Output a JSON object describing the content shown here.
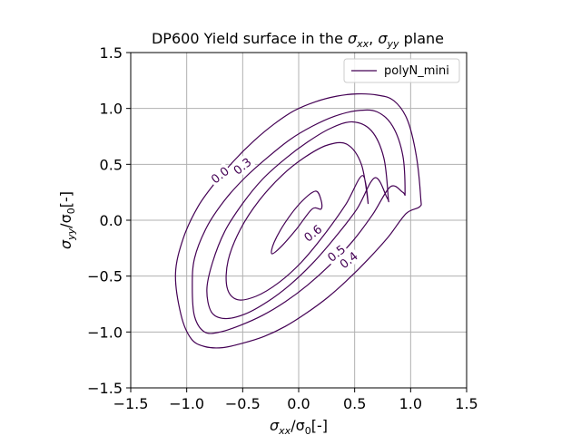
{
  "chart_data": {
    "type": "contour",
    "title": "DP600 Yield surface in the σxx, σyy plane",
    "title_parts": {
      "prefix": "DP600 Yield surface in the ",
      "var1_base": "σ",
      "var1_sub": "xx",
      "sep": ", ",
      "var2_base": "σ",
      "var2_sub": "yy",
      "suffix": " plane"
    },
    "xlabel": "σxx/σ0[-]",
    "xlabel_parts": {
      "base": "σ",
      "sub": "xx",
      "mid": "/σ",
      "sub2": "0",
      "tail": "[-]"
    },
    "ylabel": "σyy/σ0[-]",
    "ylabel_parts": {
      "base": "σ",
      "sub": "yy",
      "mid": "/σ",
      "sub2": "0",
      "tail": "[-]"
    },
    "xlim": [
      -1.5,
      1.5
    ],
    "ylim": [
      -1.5,
      1.5
    ],
    "xticks": [
      -1.5,
      -1.0,
      -0.5,
      0.0,
      0.5,
      1.0,
      1.5
    ],
    "yticks": [
      -1.5,
      -1.0,
      -0.5,
      0.0,
      0.5,
      1.0,
      1.5
    ],
    "xtick_labels": [
      "−1.5",
      "−1.0",
      "−0.5",
      "0.0",
      "0.5",
      "1.0",
      "1.5"
    ],
    "ytick_labels": [
      "−1.5",
      "−1.0",
      "−0.5",
      "0.0",
      "0.5",
      "1.0",
      "1.5"
    ],
    "grid": true,
    "legend": {
      "placement": "top-right",
      "entries": [
        "polyN_mini"
      ]
    },
    "line_color": "#440154",
    "series": [
      {
        "level": "0.0",
        "x": [
          1.09,
          1.05,
          0.97,
          0.85,
          0.7,
          0.52,
          0.34,
          0.15,
          -0.04,
          -0.22,
          -0.4,
          -0.58,
          -0.75,
          -0.9,
          -1.03,
          -1.1,
          -1.05,
          -0.96,
          -0.84,
          -0.68,
          -0.5,
          -0.31,
          -0.12,
          0.07,
          0.26,
          0.44,
          0.62,
          0.8,
          0.96,
          1.08
        ],
        "y": [
          0.2,
          0.58,
          0.9,
          1.07,
          1.12,
          1.13,
          1.11,
          1.06,
          0.98,
          0.86,
          0.71,
          0.53,
          0.33,
          0.12,
          -0.16,
          -0.48,
          -0.85,
          -1.06,
          -1.13,
          -1.14,
          -1.1,
          -1.04,
          -0.95,
          -0.83,
          -0.69,
          -0.53,
          -0.35,
          -0.15,
          0.06,
          0.12
        ]
      },
      {
        "level": "0.3",
        "x": [
          0.95,
          0.93,
          0.84,
          0.7,
          0.52,
          0.32,
          0.12,
          -0.08,
          -0.28,
          -0.48,
          -0.66,
          -0.82,
          -0.93,
          -0.95,
          -0.93,
          -0.84,
          -0.7,
          -0.52,
          -0.32,
          -0.12,
          0.08,
          0.28,
          0.48,
          0.66,
          0.82,
          0.93
        ],
        "y": [
          0.25,
          0.58,
          0.84,
          0.97,
          0.98,
          0.93,
          0.84,
          0.72,
          0.56,
          0.38,
          0.18,
          -0.06,
          -0.34,
          -0.6,
          -0.86,
          -1.0,
          -1.0,
          -0.94,
          -0.85,
          -0.73,
          -0.58,
          -0.4,
          -0.19,
          0.05,
          0.3,
          0.25
        ]
      },
      {
        "level": "0.4",
        "x": [
          0.8,
          0.76,
          0.65,
          0.48,
          0.28,
          0.08,
          -0.12,
          -0.32,
          -0.5,
          -0.66,
          -0.77,
          -0.82,
          -0.78,
          -0.66,
          -0.48,
          -0.28,
          -0.08,
          0.12,
          0.32,
          0.52,
          0.68,
          0.79
        ],
        "y": [
          0.2,
          0.56,
          0.8,
          0.88,
          0.82,
          0.7,
          0.55,
          0.37,
          0.15,
          -0.1,
          -0.38,
          -0.62,
          -0.82,
          -0.88,
          -0.84,
          -0.73,
          -0.58,
          -0.39,
          -0.16,
          0.1,
          0.38,
          0.2
        ]
      },
      {
        "level": "0.5",
        "x": [
          0.62,
          0.56,
          0.43,
          0.25,
          0.05,
          -0.15,
          -0.35,
          -0.52,
          -0.63,
          -0.64,
          -0.55,
          -0.38,
          -0.18,
          0.02,
          0.22,
          0.42,
          0.57
        ],
        "y": [
          0.15,
          0.5,
          0.68,
          0.67,
          0.56,
          0.4,
          0.18,
          -0.08,
          -0.36,
          -0.6,
          -0.71,
          -0.68,
          -0.56,
          -0.38,
          -0.14,
          0.14,
          0.4
        ]
      },
      {
        "level": "0.6",
        "x": [
          0.2,
          0.15,
          0.02,
          -0.12,
          -0.22,
          -0.24,
          -0.16,
          -0.02,
          0.12,
          0.2
        ],
        "y": [
          0.18,
          0.26,
          0.16,
          -0.02,
          -0.2,
          -0.3,
          -0.24,
          -0.08,
          0.1,
          0.1
        ]
      }
    ],
    "contour_labels": [
      {
        "text": "0.0",
        "x": -0.7,
        "y": 0.4
      },
      {
        "text": "0.3",
        "x": -0.5,
        "y": 0.48
      },
      {
        "text": "0.6",
        "x": 0.13,
        "y": -0.12
      },
      {
        "text": "0.5",
        "x": 0.34,
        "y": -0.3
      },
      {
        "text": "0.4",
        "x": 0.45,
        "y": -0.36
      }
    ]
  }
}
